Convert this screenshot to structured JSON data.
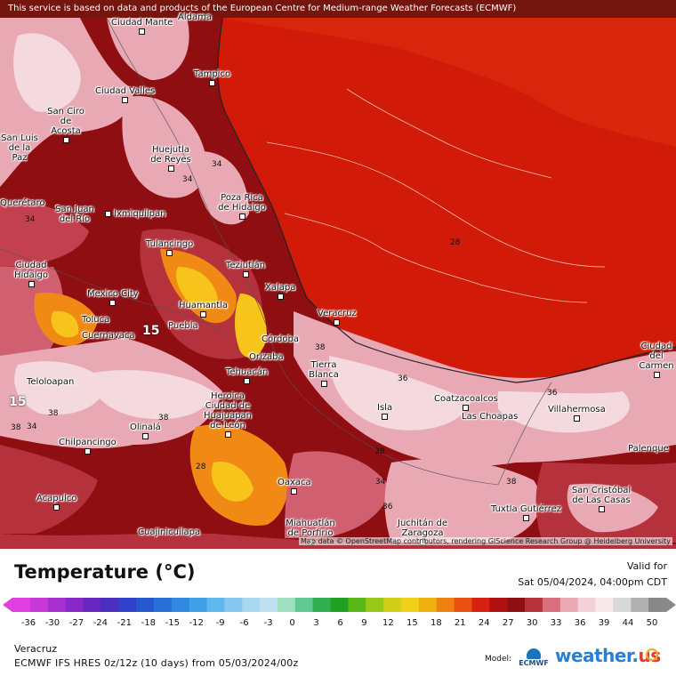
{
  "header": {
    "notice": "This service is based on data and products of the European Centre for Medium-range Weather Forecasts (ECMWF)"
  },
  "map": {
    "attribution": "Map data © OpenStreetMap contributors, rendering GIScience Research Group @ Heidelberg University",
    "colors": {
      "gulf": "#d21a08",
      "gulf_north": "#d8260c",
      "land_dark": "#8e0e12",
      "land_mid": "#b5323c",
      "land_pink": "#e8a9b4",
      "land_pale": "#f4d9de",
      "land_orange": "#f08a14",
      "land_yellow": "#f6c41a"
    },
    "cities": [
      "Ciudad Mante",
      "Aldama",
      "Tampico",
      "Ciudad Valles",
      "San Ciro de Acosta",
      "Huejutla de Reyes",
      "San Luis de la Paz",
      "Poza Rica de Hidalgo",
      "Querétaro",
      "San Juan del Río",
      "Ixmiquilpan",
      "Tulancingo",
      "Ciudad Hidalgo",
      "Teziutlán",
      "Xalapa",
      "Mexico City",
      "Huamantla",
      "Toluca",
      "Puebla",
      "Cuernavaca",
      "Veracruz",
      "Córdoba",
      "Orizaba",
      "Tierra Blanca",
      "Tehuacán",
      "Teloloapan",
      "Heroica Ciudad de Huajuapan de León",
      "Olinalá",
      "Isla",
      "Coatzacoalcos",
      "Las Choapas",
      "Villahermosa",
      "Ciudad del Carmen",
      "Chilpancingo",
      "Palenque",
      "Oaxaca",
      "San Cristóbal de Las Casas",
      "Acapulco",
      "Cuajinicuilapa",
      "Miahuatlán de Porfirio",
      "Juchitán de Zaragoza",
      "Tuxtla Gutiérrez"
    ],
    "isolabels": [
      "34",
      "34",
      "28",
      "34",
      "38",
      "36",
      "36",
      "34",
      "38",
      "38",
      "38",
      "38",
      "34",
      "36",
      "28",
      "38",
      "15",
      "15"
    ]
  },
  "legend": {
    "title": "Temperature (°C)",
    "valid_label": "Valid for",
    "valid_time": "Sat 05/04/2024, 04:00pm CDT",
    "ticks": [
      "-36",
      "-30",
      "-27",
      "-24",
      "-21",
      "-18",
      "-15",
      "-12",
      "-9",
      "-6",
      "-3",
      "0",
      "3",
      "6",
      "9",
      "12",
      "15",
      "18",
      "21",
      "24",
      "27",
      "30",
      "33",
      "36",
      "39",
      "44",
      "50"
    ],
    "scale_colors": [
      "#e040e0",
      "#c838d8",
      "#a830d0",
      "#8828c8",
      "#6828c0",
      "#4a30c0",
      "#3040c8",
      "#2858d0",
      "#2870d8",
      "#3088e0",
      "#40a0e8",
      "#60b8f0",
      "#88c8f0",
      "#a8d8f0",
      "#c0e0f0",
      "#a0e0c0",
      "#60c890",
      "#30b050",
      "#20a020",
      "#58b818",
      "#98c818",
      "#d0d018",
      "#f0d018",
      "#f0b010",
      "#f08010",
      "#e85010",
      "#d82010",
      "#b01010",
      "#8e0e12",
      "#b5323c",
      "#d87080",
      "#e8a9b4",
      "#f4d0d8",
      "#f8e8ec",
      "#d8d8d8",
      "#b0b0b0",
      "#888888"
    ],
    "region": "Veracruz",
    "model_line": "ECMWF IFS HRES 0z/12z (10 days) from 05/03/2024/00z",
    "model_label": "Model:",
    "ecmwf_logo_text": "ECMWF",
    "brand_main": "weather.",
    "brand_tld": "us"
  }
}
